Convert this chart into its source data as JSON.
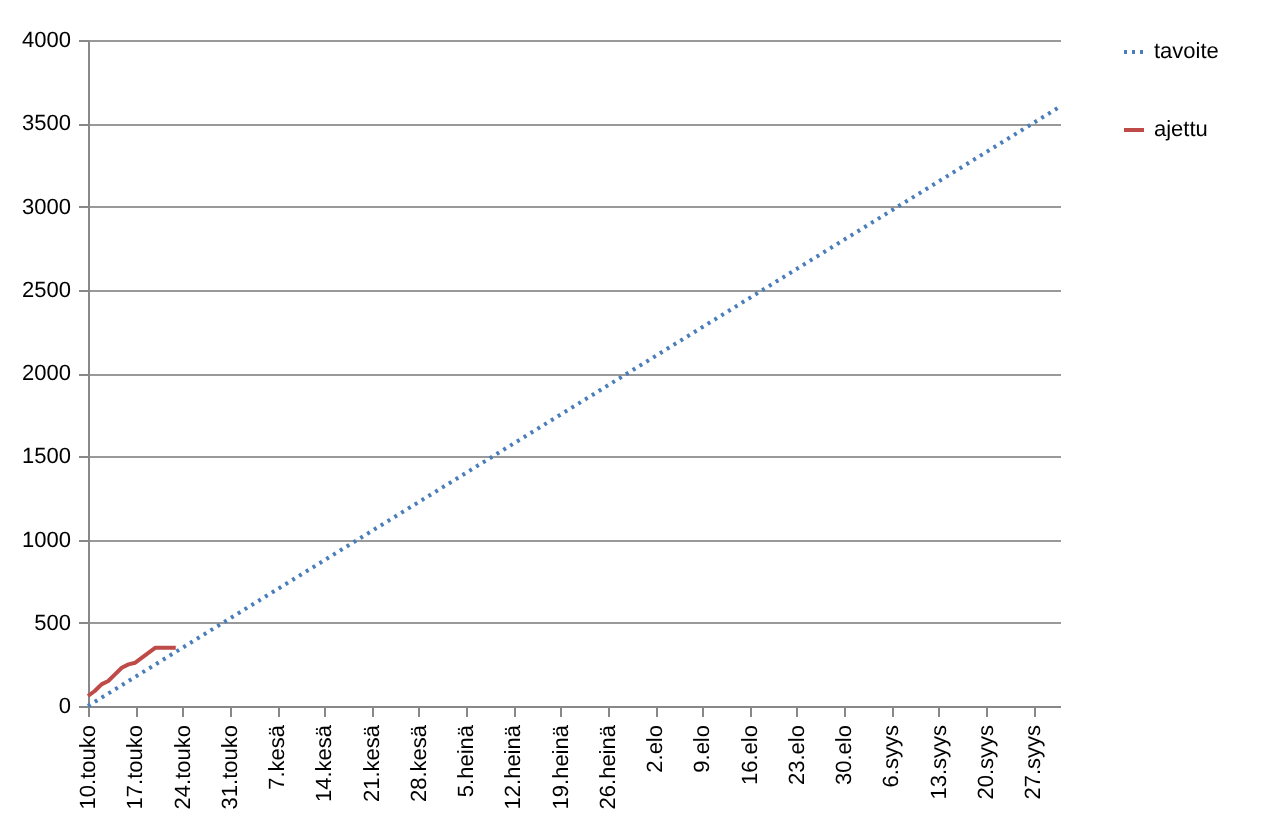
{
  "chart_data": {
    "type": "line",
    "series": [
      {
        "name": "tavoite",
        "color": "#4a7ebb",
        "line_style": "dotted",
        "x": [
          "--05-10",
          "--10-01"
        ],
        "values": [
          0,
          3600
        ]
      },
      {
        "name": "ajettu",
        "color": "#be4b48",
        "line_style": "solid",
        "x": [
          "--05-10",
          "--05-11",
          "--05-12",
          "--05-13",
          "--05-14",
          "--05-15",
          "--05-16",
          "--05-17",
          "--05-18",
          "--05-19",
          "--05-20",
          "--05-21",
          "--05-22",
          "--05-23"
        ],
        "values": [
          60,
          90,
          130,
          150,
          190,
          230,
          250,
          260,
          290,
          320,
          350,
          350,
          350,
          350
        ]
      }
    ],
    "xlim": [
      "--05-10",
      "--10-01"
    ],
    "xticks": [
      {
        "value": "--05-10",
        "label": "10.touko"
      },
      {
        "value": "--05-17",
        "label": "17.touko"
      },
      {
        "value": "--05-24",
        "label": "24.touko"
      },
      {
        "value": "--05-31",
        "label": "31.touko"
      },
      {
        "value": "--06-07",
        "label": "7.kesä"
      },
      {
        "value": "--06-14",
        "label": "14.kesä"
      },
      {
        "value": "--06-21",
        "label": "21.kesä"
      },
      {
        "value": "--06-28",
        "label": "28.kesä"
      },
      {
        "value": "--07-05",
        "label": "5.heinä"
      },
      {
        "value": "--07-12",
        "label": "12.heinä"
      },
      {
        "value": "--07-19",
        "label": "19.heinä"
      },
      {
        "value": "--07-26",
        "label": "26.heinä"
      },
      {
        "value": "--08-02",
        "label": "2.elo"
      },
      {
        "value": "--08-09",
        "label": "9.elo"
      },
      {
        "value": "--08-16",
        "label": "16.elo"
      },
      {
        "value": "--08-23",
        "label": "23.elo"
      },
      {
        "value": "--08-30",
        "label": "30.elo"
      },
      {
        "value": "--09-06",
        "label": "6.syys"
      },
      {
        "value": "--09-13",
        "label": "13.syys"
      },
      {
        "value": "--09-20",
        "label": "20.syys"
      },
      {
        "value": "--09-27",
        "label": "27.syys"
      }
    ],
    "ylim": [
      0,
      4000
    ],
    "yticks": [
      0,
      500,
      1000,
      1500,
      2000,
      2500,
      3000,
      3500,
      4000
    ],
    "grid": "y",
    "legend": "right"
  }
}
